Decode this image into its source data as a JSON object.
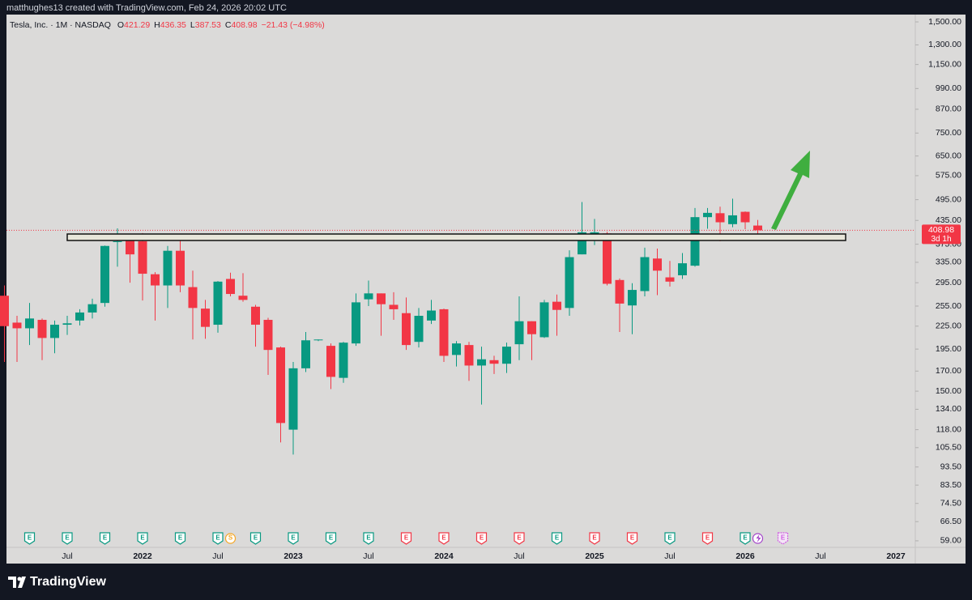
{
  "header": {
    "attribution": "matthughes13 created with TradingView.com, Feb 24, 2026 20:02 UTC"
  },
  "footer": {
    "brand": "TradingView"
  },
  "chart_data": {
    "type": "candlestick",
    "symbol": "Tesla, Inc. · 1M · NASDAQ",
    "ohlc_letters": [
      "O",
      "H",
      "L",
      "C"
    ],
    "change": "−21.43 (−4.98%)",
    "countdown": "3d 1h",
    "up_color": "#089981",
    "down_color": "#f23645",
    "log_scale": true,
    "categories": [
      null,
      null,
      null,
      null,
      null,
      "Jul",
      null,
      null,
      null,
      null,
      null,
      "2022",
      null,
      null,
      null,
      null,
      null,
      "Jul",
      null,
      null,
      null,
      null,
      null,
      "2023",
      null,
      null,
      null,
      null,
      null,
      "Jul",
      null,
      null,
      null,
      null,
      null,
      "2024",
      null,
      null,
      null,
      null,
      null,
      "Jul",
      null,
      null,
      null,
      null,
      null,
      "2025",
      null,
      null,
      null,
      null,
      null,
      "Jul",
      null,
      null,
      null,
      null,
      null,
      "2026",
      null,
      null,
      null,
      null,
      null,
      "Jul",
      null,
      null,
      null,
      null,
      null,
      "2027",
      null
    ],
    "open": [
      272,
      230,
      222,
      234,
      209,
      227,
      233,
      245,
      260,
      381,
      386,
      382,
      311,
      290,
      360,
      287,
      251,
      227,
      302,
      272,
      254,
      234,
      197,
      118,
      173,
      206,
      199,
      163,
      202,
      266,
      276,
      257,
      244,
      204,
      233,
      250,
      188,
      200,
      176,
      182,
      178,
      201,
      232,
      210,
      262,
      252,
      352,
      390,
      401,
      300,
      256,
      280,
      343,
      305,
      309,
      328,
      444,
      455,
      425,
      459,
      421.29,
      null,
      null,
      null,
      null,
      null,
      null,
      null,
      null,
      null,
      null,
      null,
      null
    ],
    "high": [
      290,
      240,
      260,
      236,
      233,
      240,
      250,
      267,
      372,
      414,
      390,
      402,
      315,
      371,
      385,
      318,
      265,
      298,
      314,
      313,
      257,
      237,
      198,
      180,
      217,
      207,
      202,
      204,
      276,
      299,
      276,
      278,
      269,
      252,
      265,
      251,
      205,
      204,
      198,
      187,
      203,
      271,
      232,
      265,
      274,
      361,
      488,
      439,
      405,
      303,
      294,
      367,
      365,
      338,
      355,
      470,
      470,
      474,
      498,
      460,
      436.35,
      null,
      null,
      null,
      null,
      null,
      null,
      null,
      null,
      null,
      null,
      null,
      null
    ],
    "low": [
      180,
      180,
      200,
      182,
      190,
      213,
      226,
      236,
      254,
      326,
      295,
      264,
      233,
      252,
      278,
      207,
      208,
      216,
      271,
      262,
      198,
      166,
      109,
      101,
      169,
      205,
      152,
      158,
      199,
      255,
      212,
      234,
      194,
      197,
      228,
      180,
      175,
      160,
      138,
      167,
      168,
      182,
      182,
      209,
      212,
      240,
      352,
      373,
      290,
      217,
      214,
      271,
      273,
      288,
      302,
      326,
      413,
      382,
      417,
      412,
      387.53,
      null,
      null,
      null,
      null,
      null,
      null,
      null,
      null,
      null,
      null,
      null,
      null
    ],
    "close": [
      225,
      222,
      236,
      209,
      227,
      229,
      245,
      258,
      371,
      382,
      352,
      312,
      290,
      360,
      290,
      252,
      224,
      297,
      275,
      265,
      227,
      194,
      123,
      173,
      206,
      207,
      164,
      203,
      261,
      276,
      258,
      250,
      200,
      240,
      248,
      187,
      202,
      176,
      183,
      178,
      198,
      232,
      214,
      261,
      249,
      346,
      404,
      404,
      293,
      259,
      282,
      346,
      318,
      297,
      333,
      444,
      456,
      430,
      449,
      430,
      408.98,
      null,
      null,
      null,
      null,
      null,
      null,
      null,
      null,
      null,
      null,
      null,
      null
    ],
    "ylim": [
      51.2,
      1570
    ],
    "yticks": [
      {
        "value": 1500,
        "label": "1,500.00"
      },
      {
        "value": 1300,
        "label": "1,300.00"
      },
      {
        "value": 1150,
        "label": "1,150.00"
      },
      {
        "value": 990,
        "label": "990.00"
      },
      {
        "value": 870,
        "label": "870.00"
      },
      {
        "value": 750,
        "label": "750.00"
      },
      {
        "value": 650,
        "label": "650.00"
      },
      {
        "value": 575,
        "label": "575.00"
      },
      {
        "value": 495,
        "label": "495.00"
      },
      {
        "value": 435,
        "label": "435.00"
      },
      {
        "value": 375,
        "label": "375.00"
      },
      {
        "value": 335,
        "label": "335.00"
      },
      {
        "value": 295,
        "label": "295.00"
      },
      {
        "value": 255,
        "label": "255.00"
      },
      {
        "value": 225,
        "label": "225.00"
      },
      {
        "value": 195,
        "label": "195.00"
      },
      {
        "value": 170,
        "label": "170.00"
      },
      {
        "value": 150,
        "label": "150.00"
      },
      {
        "value": 134,
        "label": "134.00"
      },
      {
        "value": 118,
        "label": "118.00"
      },
      {
        "value": 105.5,
        "label": "105.50"
      },
      {
        "value": 93.5,
        "label": "93.50"
      },
      {
        "value": 83.5,
        "label": "83.50"
      },
      {
        "value": 74.5,
        "label": "74.50"
      },
      {
        "value": 66.5,
        "label": "66.50"
      },
      {
        "value": 59,
        "label": "59.00"
      }
    ],
    "events": [
      {
        "label": "E",
        "color": "#089981"
      },
      {
        "label": "E",
        "color": "#089981"
      },
      {
        "label": "E",
        "color": "#089981"
      },
      {
        "label": "E",
        "color": "#089981"
      },
      {
        "label": "E",
        "color": "#089981"
      },
      {
        "label": "E",
        "color": "#089981"
      },
      {
        "label": "S",
        "color": "#f5a623"
      },
      {
        "label": "E",
        "color": "#089981"
      },
      {
        "label": "E",
        "color": "#089981"
      },
      {
        "label": "E",
        "color": "#089981"
      },
      {
        "label": "E",
        "color": "#089981"
      },
      {
        "label": "E",
        "color": "#f23645"
      },
      {
        "label": "E",
        "color": "#f23645"
      },
      {
        "label": "E",
        "color": "#f23645"
      },
      {
        "label": "E",
        "color": "#f23645"
      },
      {
        "label": "E",
        "color": "#089981"
      },
      {
        "label": "E",
        "color": "#f23645"
      },
      {
        "label": "E",
        "color": "#f23645"
      },
      {
        "label": "E",
        "color": "#089981"
      },
      {
        "label": "E",
        "color": "#f23645"
      },
      {
        "label": "E",
        "color": "#089981"
      },
      {
        "label": "E",
        "color": "#d05ce3"
      }
    ]
  }
}
